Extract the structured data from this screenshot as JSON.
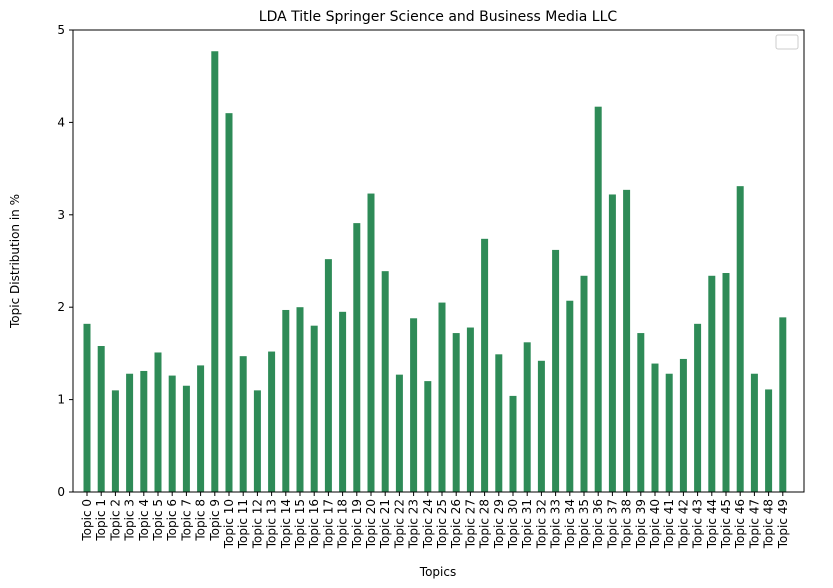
{
  "chart_data": {
    "type": "bar",
    "title": "LDA Title Springer Science and Business Media LLC",
    "xlabel": "Topics",
    "ylabel": "Topic Distribution in %",
    "ylim": [
      0,
      5
    ],
    "yticks": [
      0,
      1,
      2,
      3,
      4,
      5
    ],
    "grid": false,
    "legend": "top-right",
    "bar_color": "#2e8b57",
    "categories": [
      "Topic 0",
      "Topic 1",
      "Topic 2",
      "Topic 3",
      "Topic 4",
      "Topic 5",
      "Topic 6",
      "Topic 7",
      "Topic 8",
      "Topic 9",
      "Topic 10",
      "Topic 11",
      "Topic 12",
      "Topic 13",
      "Topic 14",
      "Topic 15",
      "Topic 16",
      "Topic 17",
      "Topic 18",
      "Topic 19",
      "Topic 20",
      "Topic 21",
      "Topic 22",
      "Topic 23",
      "Topic 24",
      "Topic 25",
      "Topic 26",
      "Topic 27",
      "Topic 28",
      "Topic 29",
      "Topic 30",
      "Topic 31",
      "Topic 32",
      "Topic 33",
      "Topic 34",
      "Topic 35",
      "Topic 36",
      "Topic 37",
      "Topic 38",
      "Topic 39",
      "Topic 40",
      "Topic 41",
      "Topic 42",
      "Topic 43",
      "Topic 44",
      "Topic 45",
      "Topic 46",
      "Topic 47",
      "Topic 48",
      "Topic 49"
    ],
    "values": [
      1.82,
      1.58,
      1.1,
      1.28,
      1.31,
      1.51,
      1.26,
      1.15,
      1.37,
      4.77,
      4.1,
      1.47,
      1.1,
      1.52,
      1.97,
      2.0,
      1.8,
      2.52,
      1.95,
      2.91,
      3.23,
      2.39,
      1.27,
      1.88,
      1.2,
      2.05,
      1.72,
      1.78,
      2.74,
      1.49,
      1.04,
      1.62,
      1.42,
      2.62,
      2.07,
      2.34,
      4.17,
      3.22,
      3.27,
      1.72,
      1.39,
      1.28,
      1.44,
      1.82,
      2.34,
      2.37,
      3.31,
      1.28,
      1.11,
      1.89
    ]
  }
}
